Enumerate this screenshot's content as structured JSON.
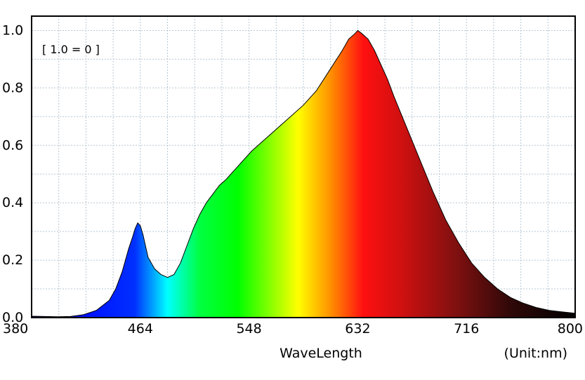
{
  "chart_data": {
    "type": "area",
    "title": "",
    "xlabel": "WaveLength",
    "unit_label": "(Unit:nm)",
    "annotation": "[ 1.0 = 0 ]",
    "xlim": [
      380,
      800
    ],
    "ylim": [
      0,
      1.05
    ],
    "x_ticks": [
      "380",
      "464",
      "548",
      "632",
      "716",
      "800"
    ],
    "y_ticks": [
      "0.0",
      "0.2",
      "0.4",
      "0.6",
      "0.8",
      "1.0"
    ],
    "grid": true,
    "fill": "visible-spectrum gradient",
    "x": [
      380,
      390,
      400,
      410,
      420,
      430,
      440,
      445,
      450,
      455,
      458,
      460,
      462,
      464,
      466,
      468,
      470,
      475,
      480,
      485,
      490,
      495,
      500,
      505,
      510,
      515,
      520,
      525,
      530,
      540,
      550,
      560,
      570,
      580,
      590,
      600,
      610,
      620,
      625,
      630,
      632,
      635,
      640,
      645,
      650,
      655,
      660,
      670,
      680,
      690,
      700,
      710,
      720,
      730,
      740,
      750,
      760,
      770,
      780,
      790,
      800
    ],
    "values": [
      0.005,
      0.004,
      0.003,
      0.004,
      0.01,
      0.025,
      0.06,
      0.1,
      0.16,
      0.24,
      0.28,
      0.31,
      0.33,
      0.32,
      0.29,
      0.25,
      0.21,
      0.17,
      0.15,
      0.14,
      0.15,
      0.19,
      0.25,
      0.31,
      0.36,
      0.4,
      0.43,
      0.46,
      0.48,
      0.53,
      0.58,
      0.62,
      0.66,
      0.7,
      0.74,
      0.79,
      0.86,
      0.93,
      0.97,
      0.99,
      1.0,
      0.99,
      0.97,
      0.93,
      0.88,
      0.83,
      0.77,
      0.66,
      0.55,
      0.44,
      0.34,
      0.26,
      0.19,
      0.14,
      0.1,
      0.07,
      0.05,
      0.035,
      0.025,
      0.02,
      0.015
    ]
  },
  "colors": {
    "axes": "#000000",
    "grid": "#b7c7d3",
    "outline": "#000000",
    "background": "#ffffff"
  }
}
